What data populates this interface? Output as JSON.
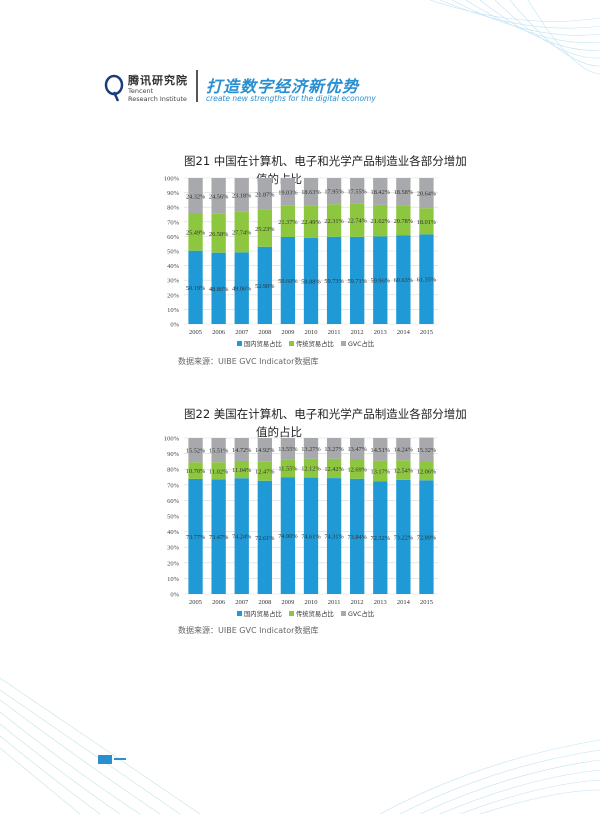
{
  "header": {
    "logo_cn": "腾讯研究院",
    "logo_en_line1": "Tencent",
    "logo_en_line2": "Research Institute",
    "slogan_cn": "打造数字经济新优势",
    "slogan_en": "create new strengths for the digital economy"
  },
  "colors": {
    "domestic": "#1f9ad6",
    "traditional": "#8dc63f",
    "gvc": "#a8a9ac",
    "accent": "#2a8fd0"
  },
  "figures": [
    {
      "title_line1": "图21  中国在计算机、电子和光学产品制造业各部分增加",
      "title_line2": "值的占比",
      "source": "数据来源：UIBE GVC Indicator数据库"
    },
    {
      "title_line1": "图22  美国在计算机、电子和光学产品制造业各部分增加",
      "title_line2": "值的占比",
      "source": "数据来源：UIBE GVC Indicator数据库"
    }
  ],
  "chart_data": [
    {
      "type": "bar",
      "stacked": true,
      "categories": [
        "2005",
        "2006",
        "2007",
        "2008",
        "2009",
        "2010",
        "2011",
        "2012",
        "2013",
        "2014",
        "2015"
      ],
      "series": [
        {
          "name": "国内贸易占比",
          "values": [
            50.19,
            48.86,
            49.06,
            52.9,
            59.6,
            58.88,
            59.73,
            59.71,
            59.96,
            60.63,
            61.35
          ],
          "labels": [
            "50.19%",
            "48.86%",
            "49.06%",
            "52.90%",
            "59.60%",
            "58.88%",
            "59.73%",
            "59.71%",
            "59.96%",
            "60.63%",
            "61.35%"
          ]
        },
        {
          "name": "传统贸易占比",
          "values": [
            25.49,
            26.58,
            27.74,
            25.23,
            21.37,
            22.49,
            22.31,
            22.74,
            21.62,
            20.78,
            18.01
          ],
          "labels": [
            "25.49%",
            "26.58%",
            "27.74%",
            "25.23%",
            "21.37%",
            "22.49%",
            "22.31%",
            "22.74%",
            "21.62%",
            "20.78%",
            "18.01%"
          ]
        },
        {
          "name": "GVC占比",
          "values": [
            24.32,
            24.56,
            23.18,
            21.87,
            19.03,
            18.63,
            17.95,
            17.55,
            18.42,
            18.58,
            20.64
          ],
          "labels": [
            "24.32%",
            "24.56%",
            "23.18%",
            "21.87%",
            "19.03%",
            "18.63%",
            "17.95%",
            "17.55%",
            "18.42%",
            "18.58%",
            "20.64%"
          ]
        }
      ],
      "yticks": [
        "0%",
        "10%",
        "20%",
        "30%",
        "40%",
        "50%",
        "60%",
        "70%",
        "80%",
        "90%",
        "100%"
      ],
      "ylim": [
        0,
        100
      ],
      "legend": "bottom"
    },
    {
      "type": "bar",
      "stacked": true,
      "categories": [
        "2005",
        "2006",
        "2007",
        "2008",
        "2009",
        "2010",
        "2011",
        "2012",
        "2013",
        "2014",
        "2015"
      ],
      "series": [
        {
          "name": "国内贸易占比",
          "values": [
            73.77,
            73.47,
            74.24,
            72.61,
            74.9,
            74.61,
            74.31,
            73.84,
            72.32,
            73.22,
            72.89
          ],
          "labels": [
            "73.77%",
            "73.47%",
            "74.24%",
            "72.61%",
            "74.90%",
            "74.61%",
            "74.31%",
            "73.84%",
            "72.32%",
            "73.22%",
            "72.89%"
          ]
        },
        {
          "name": "传统贸易占比",
          "values": [
            10.7,
            11.02,
            11.04,
            12.47,
            11.55,
            12.12,
            12.42,
            12.69,
            13.17,
            12.54,
            12.06
          ],
          "labels": [
            "10.70%",
            "11.02%",
            "11.04%",
            "12.47%",
            "11.55%",
            "12.12%",
            "12.42%",
            "12.69%",
            "13.17%",
            "12.54%",
            "12.06%"
          ]
        },
        {
          "name": "GVC占比",
          "values": [
            15.52,
            15.51,
            14.72,
            14.92,
            13.55,
            13.27,
            13.27,
            13.47,
            14.51,
            14.24,
            15.32
          ],
          "labels": [
            "15.52%",
            "15.51%",
            "14.72%",
            "14.92%",
            "13.55%",
            "13.27%",
            "13.27%",
            "13.47%",
            "14.51%",
            "14.24%",
            "15.32%"
          ]
        }
      ],
      "yticks": [
        "0%",
        "10%",
        "20%",
        "30%",
        "40%",
        "50%",
        "60%",
        "70%",
        "80%",
        "90%",
        "100%"
      ],
      "ylim": [
        0,
        100
      ],
      "legend": "bottom"
    }
  ]
}
